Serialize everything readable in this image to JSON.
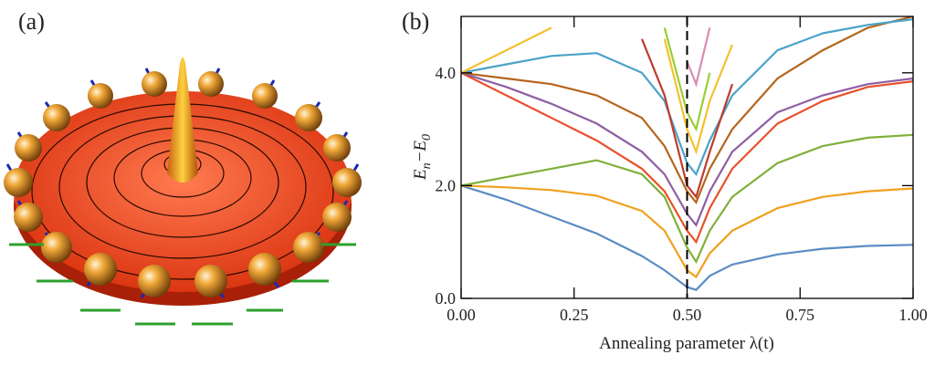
{
  "panel_a": {
    "label": "(a)"
  },
  "chart_data": {
    "type": "line",
    "label": "(b)",
    "xlabel": "Annealing parameter λ(t)",
    "ylabel": [
      "E",
      "n",
      "−E",
      "0"
    ],
    "x": [
      0,
      0.1,
      0.2,
      0.3,
      0.4,
      0.45,
      0.5,
      0.52,
      0.55,
      0.6,
      0.7,
      0.8,
      0.9,
      1.0
    ],
    "xlim": [
      0,
      1
    ],
    "xticks": [
      {
        "value": 0,
        "label": "0.00"
      },
      {
        "value": 0.25,
        "label": "0.25"
      },
      {
        "value": 0.5,
        "label": "0.50"
      },
      {
        "value": 0.75,
        "label": "0.75"
      },
      {
        "value": 1,
        "label": "1.00"
      }
    ],
    "ylim": [
      0,
      5
    ],
    "yticks": [
      {
        "value": 0,
        "label": "0.0"
      },
      {
        "value": 2,
        "label": "2.0"
      },
      {
        "value": 4,
        "label": "4.0"
      }
    ],
    "vline": 0.5,
    "series": [
      {
        "color": "#5b8cc4",
        "values": [
          2.0,
          1.75,
          1.45,
          1.15,
          0.75,
          0.5,
          0.2,
          0.15,
          0.4,
          0.6,
          0.78,
          0.88,
          0.93,
          0.95
        ]
      },
      {
        "color": "#f0a020",
        "values": [
          2.0,
          1.97,
          1.92,
          1.82,
          1.55,
          1.2,
          0.5,
          0.38,
          0.8,
          1.2,
          1.6,
          1.8,
          1.9,
          1.95
        ]
      },
      {
        "color": "#7fb03a",
        "values": [
          2.0,
          2.15,
          2.3,
          2.45,
          2.2,
          1.8,
          0.9,
          0.65,
          1.2,
          1.8,
          2.4,
          2.7,
          2.85,
          2.9
        ]
      },
      {
        "color": "#e8502a",
        "values": [
          4.0,
          3.6,
          3.2,
          2.8,
          2.3,
          1.9,
          1.2,
          1.0,
          1.6,
          2.3,
          3.1,
          3.5,
          3.75,
          3.85
        ]
      },
      {
        "color": "#8e5ea2",
        "values": [
          4.0,
          3.75,
          3.45,
          3.1,
          2.6,
          2.2,
          1.5,
          1.3,
          1.9,
          2.6,
          3.3,
          3.6,
          3.8,
          3.9
        ]
      },
      {
        "color": "#b5651d",
        "values": [
          4.0,
          3.9,
          3.8,
          3.6,
          3.2,
          2.7,
          1.9,
          1.7,
          2.3,
          3.0,
          3.9,
          4.4,
          4.8,
          5.0
        ]
      },
      {
        "color": "#4aa3c8",
        "values": [
          4.0,
          4.15,
          4.3,
          4.35,
          4.0,
          3.5,
          2.4,
          2.2,
          2.8,
          3.6,
          4.4,
          4.7,
          4.85,
          4.95
        ]
      },
      {
        "color": "#f2c12e",
        "values": [
          4.0,
          4.4,
          4.8,
          null,
          null,
          4.6,
          3.0,
          2.6,
          3.5,
          4.5,
          null,
          null,
          null,
          null
        ]
      },
      {
        "color": "#c03a2b",
        "values": [
          null,
          null,
          null,
          null,
          4.6,
          3.6,
          2.0,
          1.8,
          2.6,
          3.8,
          null,
          null,
          null,
          null
        ]
      },
      {
        "color": "#9acd32",
        "values": [
          null,
          null,
          null,
          null,
          null,
          4.8,
          3.3,
          3.0,
          4.0,
          null,
          null,
          null,
          null,
          null
        ]
      },
      {
        "color": "#d98cb3",
        "values": [
          null,
          null,
          null,
          null,
          null,
          null,
          4.2,
          3.8,
          4.8,
          null,
          null,
          null,
          null,
          null
        ]
      }
    ]
  }
}
